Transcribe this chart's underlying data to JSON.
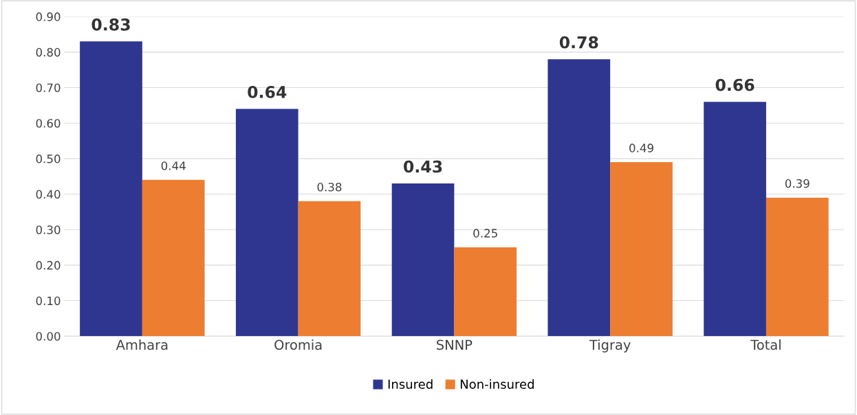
{
  "chart_data": {
    "type": "bar",
    "categories": [
      "Amhara",
      "Oromia",
      "SNNP",
      "Tigray",
      "Total"
    ],
    "series": [
      {
        "name": "Insured",
        "color": "#2e3690",
        "values": [
          0.83,
          0.64,
          0.43,
          0.78,
          0.66
        ]
      },
      {
        "name": "Non-insured",
        "color": "#ed7d31",
        "values": [
          0.44,
          0.38,
          0.25,
          0.49,
          0.39
        ]
      }
    ],
    "ylim": [
      0,
      0.9
    ],
    "yticks": [
      {
        "value": 0,
        "label": "0.00"
      },
      {
        "value": 0.1,
        "label": "0.10"
      },
      {
        "value": 0.2,
        "label": "0.20"
      },
      {
        "value": 0.3,
        "label": "0.30"
      },
      {
        "value": 0.4,
        "label": "0.40"
      },
      {
        "value": 0.5,
        "label": "0.50"
      },
      {
        "value": 0.6,
        "label": "0.60"
      },
      {
        "value": 0.7,
        "label": "0.70"
      },
      {
        "value": 0.8,
        "label": "0.80"
      },
      {
        "value": 0.9,
        "label": "0.90"
      }
    ],
    "grid": "y",
    "legend": "bottom",
    "data_labels": true
  }
}
